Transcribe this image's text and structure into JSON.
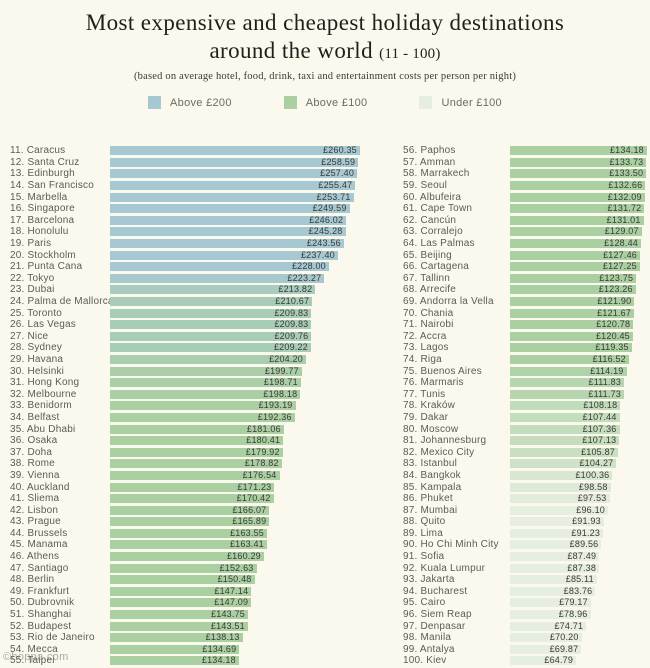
{
  "header": {
    "title_line1": "Most expensive and cheapest holiday destinations",
    "title_line2": "around the world",
    "title_range": "(11 - 100)",
    "subtitle": "(based on average hotel, food, drink, taxi and entertainment costs per person per night)"
  },
  "footer": {
    "watermark": "©hoppa.com"
  },
  "chart_data": {
    "type": "bar",
    "title": "Most expensive and cheapest holiday destinations around the world (11 - 100)",
    "subtitle": "(based on average hotel, food, drink, taxi and entertainment costs per person per night)",
    "orientation": "horizontal",
    "currency_symbol": "£",
    "legend": [
      {
        "label": "Above £200",
        "color": "#a6c8d2"
      },
      {
        "label": "Above £100",
        "color": "#aad0a2"
      },
      {
        "label": "Under £100",
        "color": "#e6eedf"
      }
    ],
    "legend_position": "top-center",
    "grid": false,
    "items": [
      {
        "rank": 11,
        "city": "Caracus",
        "value": 260.35
      },
      {
        "rank": 12,
        "city": "Santa Cruz",
        "value": 258.59
      },
      {
        "rank": 13,
        "city": "Edinburgh",
        "value": 257.4
      },
      {
        "rank": 14,
        "city": "San Francisco",
        "value": 255.47
      },
      {
        "rank": 15,
        "city": "Marbella",
        "value": 253.71
      },
      {
        "rank": 16,
        "city": "Singapore",
        "value": 249.59
      },
      {
        "rank": 17,
        "city": "Barcelona",
        "value": 246.02
      },
      {
        "rank": 18,
        "city": "Honolulu",
        "value": 245.28
      },
      {
        "rank": 19,
        "city": "Paris",
        "value": 243.56
      },
      {
        "rank": 20,
        "city": "Stockholm",
        "value": 237.4
      },
      {
        "rank": 21,
        "city": "Punta Cana",
        "value": 228.0
      },
      {
        "rank": 22,
        "city": "Tokyo",
        "value": 223.27
      },
      {
        "rank": 23,
        "city": "Dubai",
        "value": 213.82
      },
      {
        "rank": 24,
        "city": "Palma de Mallorca",
        "value": 210.67
      },
      {
        "rank": 25,
        "city": "Toronto",
        "value": 209.83
      },
      {
        "rank": 26,
        "city": "Las Vegas",
        "value": 209.83
      },
      {
        "rank": 27,
        "city": "Nice",
        "value": 209.76
      },
      {
        "rank": 28,
        "city": "Sydney",
        "value": 209.22
      },
      {
        "rank": 29,
        "city": "Havana",
        "value": 204.2
      },
      {
        "rank": 30,
        "city": "Helsinki",
        "value": 199.77
      },
      {
        "rank": 31,
        "city": "Hong Kong",
        "value": 198.71
      },
      {
        "rank": 32,
        "city": "Melbourne",
        "value": 198.18
      },
      {
        "rank": 33,
        "city": "Benidorm",
        "value": 193.19
      },
      {
        "rank": 34,
        "city": "Belfast",
        "value": 192.36
      },
      {
        "rank": 35,
        "city": "Abu Dhabi",
        "value": 181.06
      },
      {
        "rank": 36,
        "city": "Osaka",
        "value": 180.41
      },
      {
        "rank": 37,
        "city": "Doha",
        "value": 179.92
      },
      {
        "rank": 38,
        "city": "Rome",
        "value": 178.82
      },
      {
        "rank": 39,
        "city": "Vienna",
        "value": 176.54
      },
      {
        "rank": 40,
        "city": "Auckland",
        "value": 171.23
      },
      {
        "rank": 41,
        "city": "Sliema",
        "value": 170.42
      },
      {
        "rank": 42,
        "city": "Lisbon",
        "value": 166.07
      },
      {
        "rank": 43,
        "city": "Prague",
        "value": 165.89
      },
      {
        "rank": 44,
        "city": "Brussels",
        "value": 163.55
      },
      {
        "rank": 45,
        "city": "Manama",
        "value": 163.41
      },
      {
        "rank": 46,
        "city": "Athens",
        "value": 160.29
      },
      {
        "rank": 47,
        "city": "Santiago",
        "value": 152.63
      },
      {
        "rank": 48,
        "city": "Berlin",
        "value": 150.48
      },
      {
        "rank": 49,
        "city": "Frankfurt",
        "value": 147.14
      },
      {
        "rank": 50,
        "city": "Dubrovnik",
        "value": 147.09
      },
      {
        "rank": 51,
        "city": "Shanghai",
        "value": 143.75
      },
      {
        "rank": 52,
        "city": "Budapest",
        "value": 143.51
      },
      {
        "rank": 53,
        "city": "Rio de Janeiro",
        "value": 138.13
      },
      {
        "rank": 54,
        "city": "Mecca",
        "value": 134.69
      },
      {
        "rank": 55,
        "city": "Taipei",
        "value": 134.18
      },
      {
        "rank": 56,
        "city": "Paphos",
        "value": 134.18
      },
      {
        "rank": 57,
        "city": "Amman",
        "value": 133.73
      },
      {
        "rank": 58,
        "city": "Marrakech",
        "value": 133.5
      },
      {
        "rank": 59,
        "city": "Seoul",
        "value": 132.66
      },
      {
        "rank": 60,
        "city": "Albufeira",
        "value": 132.09
      },
      {
        "rank": 61,
        "city": "Cape Town",
        "value": 131.72
      },
      {
        "rank": 62,
        "city": "Cancún",
        "value": 131.01
      },
      {
        "rank": 63,
        "city": "Corralejo",
        "value": 129.07
      },
      {
        "rank": 64,
        "city": "Las Palmas",
        "value": 128.44
      },
      {
        "rank": 65,
        "city": "Beijing",
        "value": 127.46
      },
      {
        "rank": 66,
        "city": "Cartagena",
        "value": 127.25
      },
      {
        "rank": 67,
        "city": "Tallinn",
        "value": 123.75
      },
      {
        "rank": 68,
        "city": "Arrecife",
        "value": 123.26
      },
      {
        "rank": 69,
        "city": "Andorra la Vella",
        "value": 121.9
      },
      {
        "rank": 70,
        "city": "Chania",
        "value": 121.67
      },
      {
        "rank": 71,
        "city": "Nairobi",
        "value": 120.78
      },
      {
        "rank": 72,
        "city": "Accra",
        "value": 120.45
      },
      {
        "rank": 73,
        "city": "Lagos",
        "value": 119.35
      },
      {
        "rank": 74,
        "city": "Riga",
        "value": 116.52
      },
      {
        "rank": 75,
        "city": "Buenos Aires",
        "value": 114.19
      },
      {
        "rank": 76,
        "city": "Marmaris",
        "value": 111.83
      },
      {
        "rank": 77,
        "city": "Tunis",
        "value": 111.73
      },
      {
        "rank": 78,
        "city": "Kraków",
        "value": 108.18
      },
      {
        "rank": 79,
        "city": "Dakar",
        "value": 107.44
      },
      {
        "rank": 80,
        "city": "Moscow",
        "value": 107.36
      },
      {
        "rank": 81,
        "city": "Johannesburg",
        "value": 107.13
      },
      {
        "rank": 82,
        "city": "Mexico City",
        "value": 105.87
      },
      {
        "rank": 83,
        "city": "Istanbul",
        "value": 104.27
      },
      {
        "rank": 84,
        "city": "Bangkok",
        "value": 100.36
      },
      {
        "rank": 85,
        "city": "Kampala",
        "value": 98.58
      },
      {
        "rank": 86,
        "city": "Phuket",
        "value": 97.53
      },
      {
        "rank": 87,
        "city": "Mumbai",
        "value": 96.1
      },
      {
        "rank": 88,
        "city": "Quito",
        "value": 91.93
      },
      {
        "rank": 89,
        "city": "Lima",
        "value": 91.23
      },
      {
        "rank": 90,
        "city": "Ho Chi Minh City",
        "value": 89.56
      },
      {
        "rank": 91,
        "city": "Sofia",
        "value": 87.49
      },
      {
        "rank": 92,
        "city": "Kuala Lumpur",
        "value": 87.38
      },
      {
        "rank": 93,
        "city": "Jakarta",
        "value": 85.11
      },
      {
        "rank": 94,
        "city": "Bucharest",
        "value": 83.76
      },
      {
        "rank": 95,
        "city": "Cairo",
        "value": 79.17
      },
      {
        "rank": 96,
        "city": "Siem Reap",
        "value": 78.96
      },
      {
        "rank": 97,
        "city": "Denpasar",
        "value": 74.71
      },
      {
        "rank": 98,
        "city": "Manila",
        "value": 70.2
      },
      {
        "rank": 99,
        "city": "Antalya",
        "value": 69.87
      },
      {
        "rank": 100,
        "city": "Kiev",
        "value": 64.79
      }
    ]
  }
}
